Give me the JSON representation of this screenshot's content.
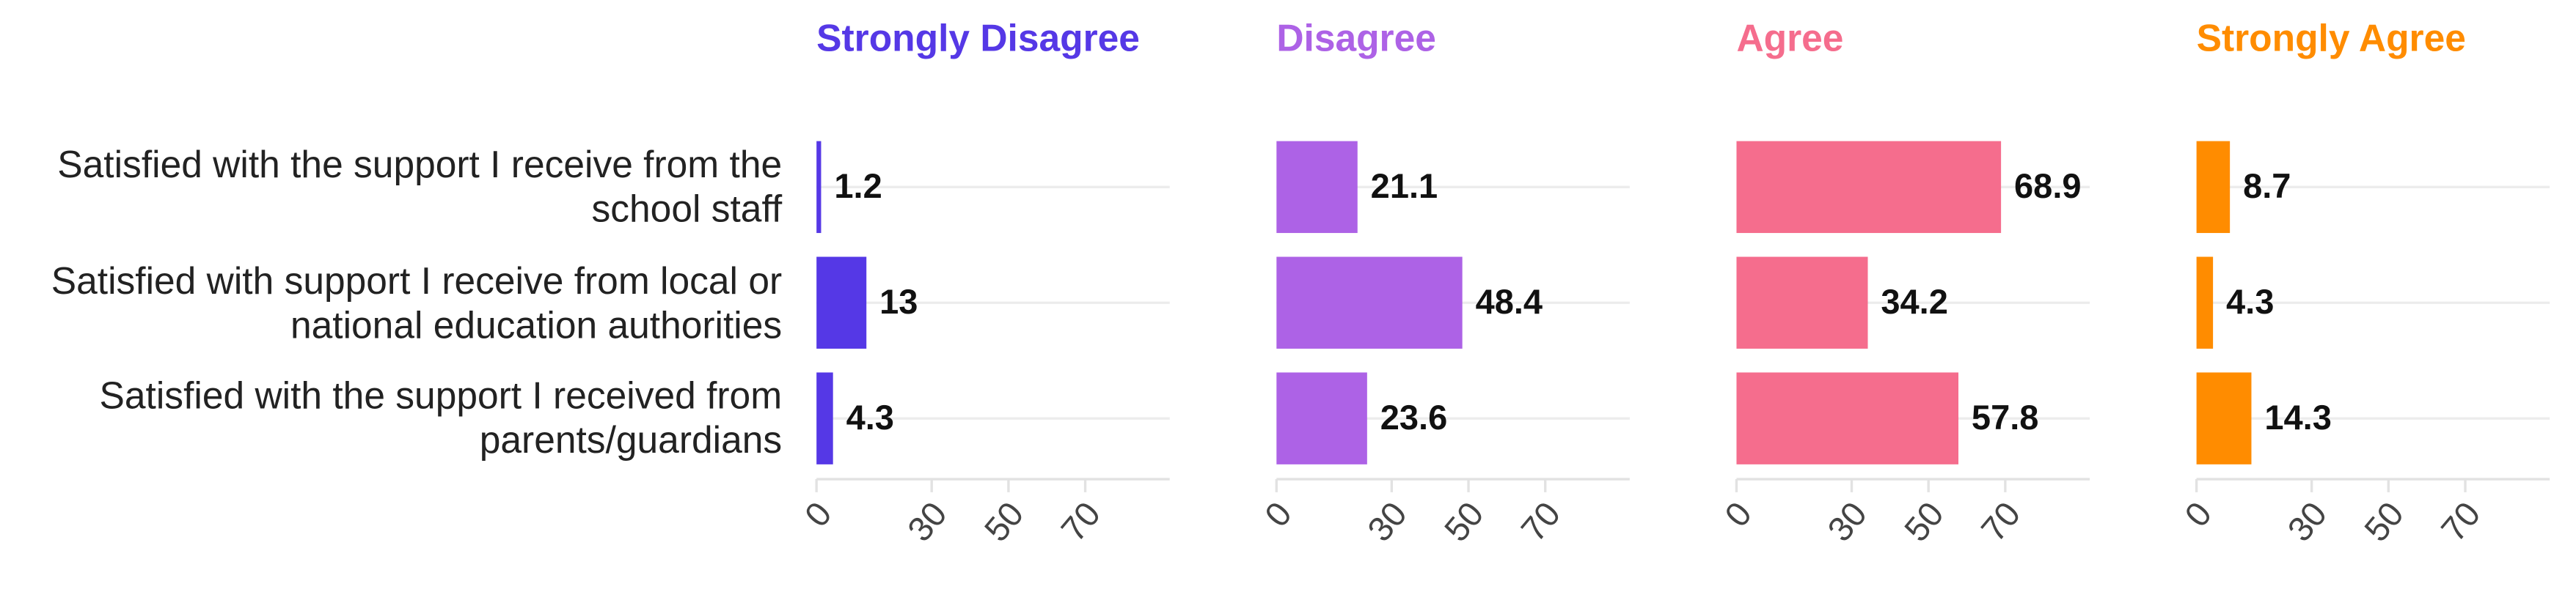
{
  "chart_data": {
    "type": "bar",
    "orientation": "horizontal",
    "categories": [
      "Satisfied with the support I receive from the school staff",
      "Satisfied with support I receive from local or national education authorities",
      "Satisfied with the support I received from parents/guardians"
    ],
    "series": [
      {
        "name": "Strongly Disagree",
        "color": "#5538e6",
        "values": [
          1.2,
          13,
          4.3
        ]
      },
      {
        "name": "Disagree",
        "color": "#ad62e6",
        "values": [
          21.1,
          48.4,
          23.6
        ]
      },
      {
        "name": "Agree",
        "color": "#f56d8d",
        "values": [
          68.9,
          34.2,
          57.8
        ]
      },
      {
        "name": "Strongly Agree",
        "color": "#ff8c00",
        "values": [
          8.7,
          4.3,
          14.3
        ]
      }
    ],
    "xlim": [
      0,
      92
    ],
    "xticks": [
      0,
      30,
      50,
      70
    ],
    "grid": true
  }
}
